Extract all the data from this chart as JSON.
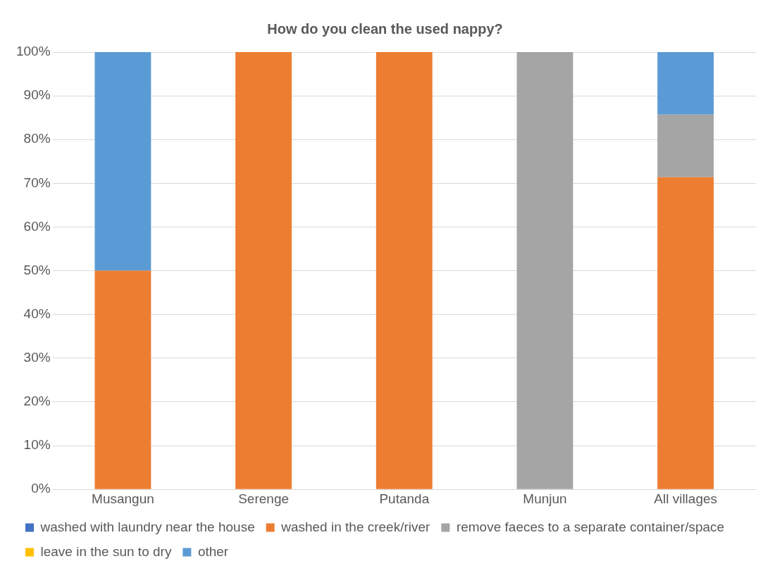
{
  "chart_data": {
    "type": "bar",
    "title": "How do you clean the used nappy?",
    "categories": [
      "Musangun",
      "Serenge",
      "Putanda",
      "Munjun",
      "All villages"
    ],
    "stacked": true,
    "series": [
      {
        "name": "washed with laundry near the house",
        "color": "#4472c4",
        "values": [
          0,
          0,
          0,
          0,
          0
        ]
      },
      {
        "name": "washed in the creek/river",
        "color": "#ed7d31",
        "values": [
          50,
          100,
          100,
          0,
          71.4
        ]
      },
      {
        "name": "remove faeces to a separate container/space",
        "color": "#a5a5a5",
        "values": [
          0,
          0,
          0,
          100,
          14.3
        ]
      },
      {
        "name": "leave in the sun to dry",
        "color": "#ffc000",
        "values": [
          0,
          0,
          0,
          0,
          0
        ]
      },
      {
        "name": "other",
        "color": "#5b9bd5",
        "values": [
          50,
          0,
          0,
          0,
          14.3
        ]
      }
    ],
    "ylim": [
      0,
      100
    ],
    "yticks": [
      {
        "value": 0,
        "label": "0%"
      },
      {
        "value": 10,
        "label": "10%"
      },
      {
        "value": 20,
        "label": "20%"
      },
      {
        "value": 30,
        "label": "30%"
      },
      {
        "value": 40,
        "label": "40%"
      },
      {
        "value": 50,
        "label": "50%"
      },
      {
        "value": 60,
        "label": "60%"
      },
      {
        "value": 70,
        "label": "70%"
      },
      {
        "value": 80,
        "label": "80%"
      },
      {
        "value": 90,
        "label": "90%"
      },
      {
        "value": 100,
        "label": "100%"
      }
    ],
    "grid": "y",
    "legend": "bottom"
  }
}
